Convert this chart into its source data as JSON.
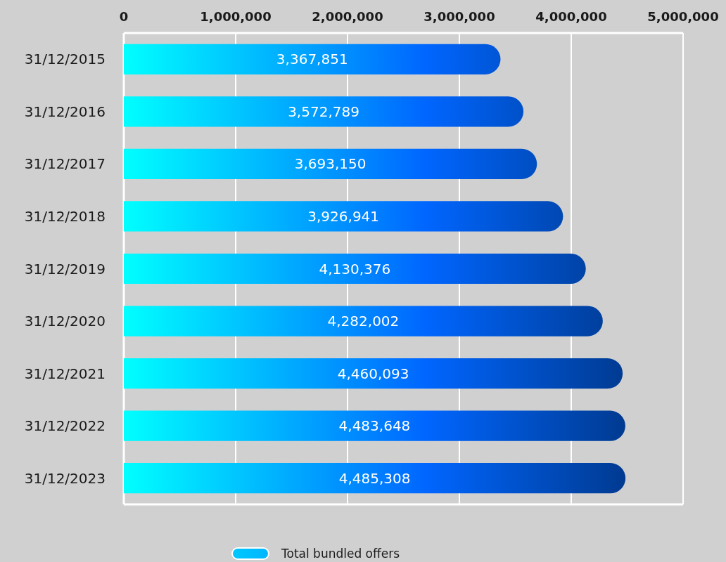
{
  "chart_data": {
    "type": "bar",
    "orientation": "horizontal",
    "categories": [
      "31/12/2015",
      "31/12/2016",
      "31/12/2017",
      "31/12/2018",
      "31/12/2019",
      "31/12/2020",
      "31/12/2021",
      "31/12/2022",
      "31/12/2023"
    ],
    "series": [
      {
        "name": "Total bundled offers",
        "color": "#0066ff",
        "values": [
          3367851,
          3572789,
          3693150,
          3926941,
          4130376,
          4282002,
          4460093,
          4483648,
          4485308
        ],
        "value_labels": [
          "3,367,851",
          "3,572,789",
          "3,693,150",
          "3,926,941",
          "4,130,376",
          "4,282,002",
          "4,460,093",
          "4,483,648",
          "4,485,308"
        ]
      }
    ],
    "xlim": [
      0,
      5000000
    ],
    "xticks": [
      {
        "value": 0,
        "label": "0"
      },
      {
        "value": 1000000,
        "label": "1,000,000"
      },
      {
        "value": 2000000,
        "label": "2,000,000"
      },
      {
        "value": 3000000,
        "label": "3,000,000"
      },
      {
        "value": 4000000,
        "label": "4,000,000"
      },
      {
        "value": 5000000,
        "label": "5,000,000"
      }
    ],
    "grid": "x",
    "legend": "bottom"
  }
}
